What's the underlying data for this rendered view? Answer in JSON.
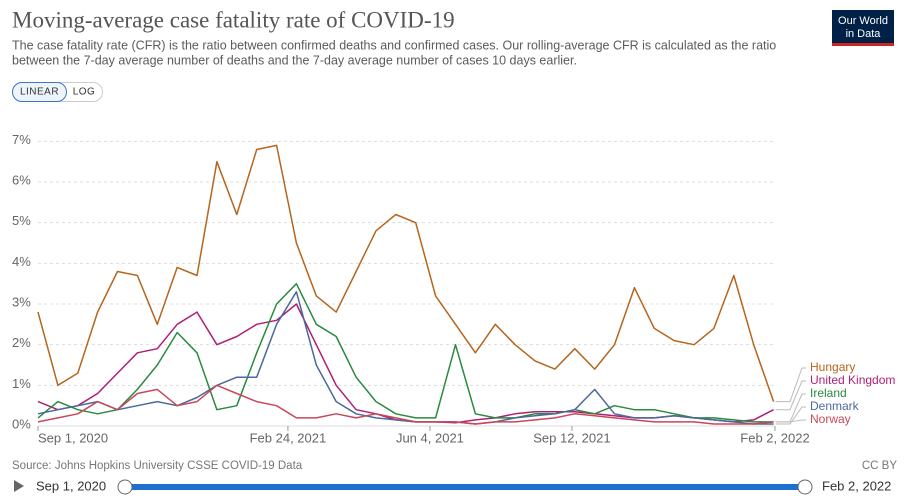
{
  "chart_data": {
    "type": "line",
    "title": "Moving-average case fatality rate of COVID-19",
    "subtitle": [
      "The case fatality rate (CFR) is the ratio between confirmed deaths and confirmed cases. Our rolling-average CFR is calculated as the ratio",
      "between the 7-day average number of deaths and the 7-day average number of cases 10 days earlier."
    ],
    "logo": [
      "Our World",
      "in Data"
    ],
    "scale_buttons": [
      "LINEAR",
      "LOG"
    ],
    "source": "Source: Johns Hopkins University CSSE COVID-19 Data",
    "license": "CC BY",
    "timeline": [
      "Sep 1, 2020",
      "Feb 2, 2022"
    ],
    "legend": "right",
    "grid": true,
    "x": [
      "2020-09-01",
      "2020-09-15",
      "2020-09-29",
      "2020-10-13",
      "2020-10-27",
      "2020-11-10",
      "2020-11-24",
      "2020-12-08",
      "2020-12-22",
      "2021-01-05",
      "2021-01-19",
      "2021-02-02",
      "2021-02-16",
      "2021-03-02",
      "2021-03-16",
      "2021-03-30",
      "2021-04-13",
      "2021-04-27",
      "2021-05-11",
      "2021-05-25",
      "2021-06-08",
      "2021-06-22",
      "2021-07-06",
      "2021-07-20",
      "2021-08-03",
      "2021-08-17",
      "2021-08-31",
      "2021-09-14",
      "2021-09-28",
      "2021-10-12",
      "2021-10-26",
      "2021-11-09",
      "2021-11-23",
      "2021-12-07",
      "2021-12-21",
      "2022-01-04",
      "2022-01-18",
      "2022-02-01"
    ],
    "xlim": [
      "2020-09-01",
      "2022-02-02"
    ],
    "xticks": [
      {
        "value": "2020-09-01",
        "label": "Sep 1, 2020"
      },
      {
        "value": "2021-02-24",
        "label": "Feb 24, 2021"
      },
      {
        "value": "2021-06-04",
        "label": "Jun 4, 2021"
      },
      {
        "value": "2021-09-12",
        "label": "Sep 12, 2021"
      },
      {
        "value": "2022-02-02",
        "label": "Feb 2, 2022"
      }
    ],
    "ylim": [
      0,
      7.5
    ],
    "yticks": [
      {
        "value": 0,
        "label": "0%"
      },
      {
        "value": 1,
        "label": "1%"
      },
      {
        "value": 2,
        "label": "2%"
      },
      {
        "value": 3,
        "label": "3%"
      },
      {
        "value": 4,
        "label": "4%"
      },
      {
        "value": 5,
        "label": "5%"
      },
      {
        "value": 6,
        "label": "6%"
      },
      {
        "value": 7,
        "label": "7%"
      }
    ],
    "series": [
      {
        "name": "Hungary",
        "color": "#b5651d",
        "values": [
          2.8,
          1.0,
          1.3,
          2.8,
          3.8,
          3.7,
          2.5,
          3.9,
          3.7,
          6.5,
          5.2,
          6.8,
          6.9,
          4.5,
          3.2,
          2.8,
          3.8,
          4.8,
          5.2,
          5.0,
          3.2,
          2.5,
          1.8,
          2.5,
          2.0,
          1.6,
          1.4,
          1.9,
          1.4,
          2.0,
          3.4,
          2.4,
          2.1,
          2.0,
          2.4,
          3.7,
          2.0,
          0.6
        ]
      },
      {
        "name": "United Kingdom",
        "color": "#b01f74",
        "values": [
          0.6,
          0.4,
          0.5,
          0.8,
          1.3,
          1.8,
          1.9,
          2.5,
          2.8,
          2.0,
          2.2,
          2.5,
          2.6,
          3.0,
          2.0,
          1.0,
          0.4,
          0.3,
          0.15,
          0.1,
          0.1,
          0.08,
          0.15,
          0.2,
          0.3,
          0.35,
          0.35,
          0.35,
          0.3,
          0.25,
          0.2,
          0.2,
          0.25,
          0.2,
          0.15,
          0.1,
          0.15,
          0.4
        ]
      },
      {
        "name": "Ireland",
        "color": "#2a8a3e",
        "values": [
          0.2,
          0.6,
          0.4,
          0.3,
          0.4,
          0.9,
          1.5,
          2.3,
          1.8,
          0.4,
          0.5,
          1.8,
          3.0,
          3.5,
          2.5,
          2.2,
          1.2,
          0.6,
          0.3,
          0.2,
          0.2,
          2.0,
          0.3,
          0.2,
          0.2,
          0.3,
          0.3,
          0.4,
          0.3,
          0.5,
          0.4,
          0.4,
          0.3,
          0.2,
          0.2,
          0.15,
          0.1,
          0.1
        ]
      },
      {
        "name": "Denmark",
        "color": "#4b6a9c",
        "values": [
          0.3,
          0.4,
          0.5,
          0.6,
          0.4,
          0.5,
          0.6,
          0.5,
          0.7,
          1.0,
          1.2,
          1.2,
          2.5,
          3.3,
          1.5,
          0.6,
          0.3,
          0.2,
          0.15,
          0.1,
          0.1,
          0.1,
          0.05,
          0.1,
          0.2,
          0.25,
          0.3,
          0.4,
          0.9,
          0.3,
          0.2,
          0.2,
          0.25,
          0.2,
          0.15,
          0.1,
          0.05,
          0.05
        ]
      },
      {
        "name": "Norway",
        "color": "#c8485a",
        "values": [
          0.1,
          0.2,
          0.3,
          0.6,
          0.4,
          0.8,
          0.9,
          0.5,
          0.6,
          1.0,
          0.8,
          0.6,
          0.5,
          0.2,
          0.2,
          0.3,
          0.2,
          0.3,
          0.2,
          0.1,
          0.1,
          0.1,
          0.05,
          0.1,
          0.1,
          0.15,
          0.2,
          0.3,
          0.25,
          0.2,
          0.15,
          0.1,
          0.1,
          0.1,
          0.05,
          0.05,
          0.05,
          0.1
        ]
      }
    ]
  }
}
